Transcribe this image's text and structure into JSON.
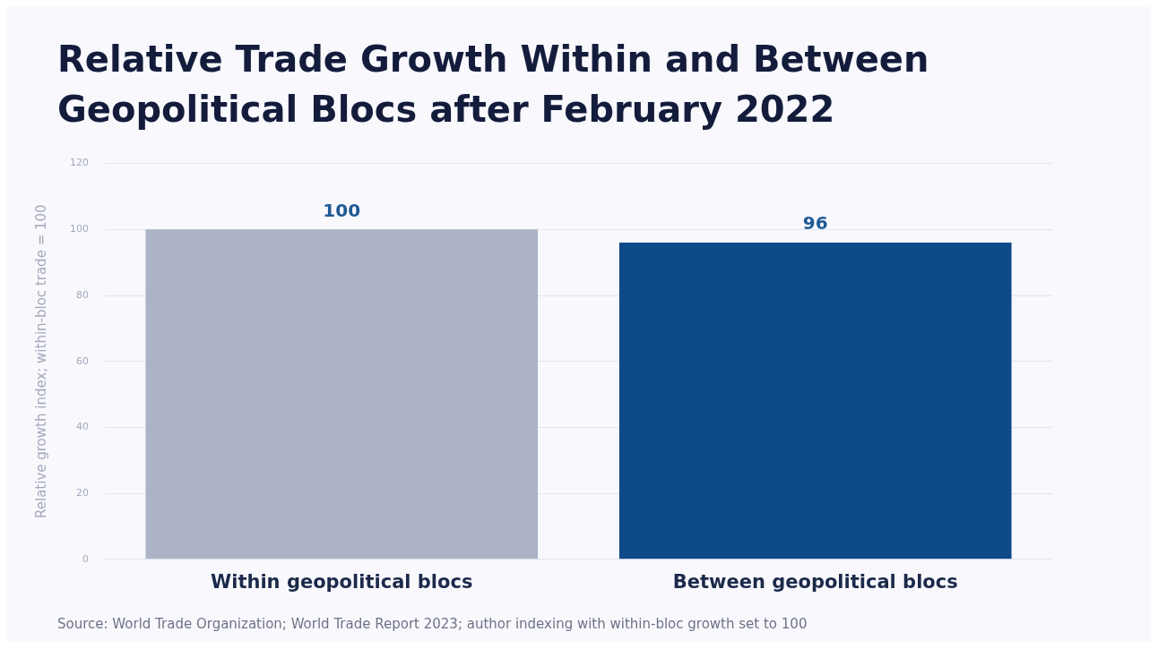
{
  "chart_data": {
    "type": "bar",
    "title": "Relative Trade Growth Within and Between Geopolitical Blocs after February 2022",
    "ylabel": "Relative growth index; within-bloc trade = 100",
    "categories": [
      "Within geopolitical blocs",
      "Between geopolitical blocs"
    ],
    "values": [
      100,
      96
    ],
    "colors": [
      "#adb3c6",
      "#0e4a87"
    ],
    "ylim": [
      0,
      120
    ],
    "yticks": [
      0,
      20,
      40,
      60,
      80,
      100,
      120
    ],
    "grid": "y",
    "data_labels": true,
    "annotations": [
      "Source: World Trade Organization; World Trade Report 2023; author indexing with within-bloc growth set to 100"
    ]
  }
}
